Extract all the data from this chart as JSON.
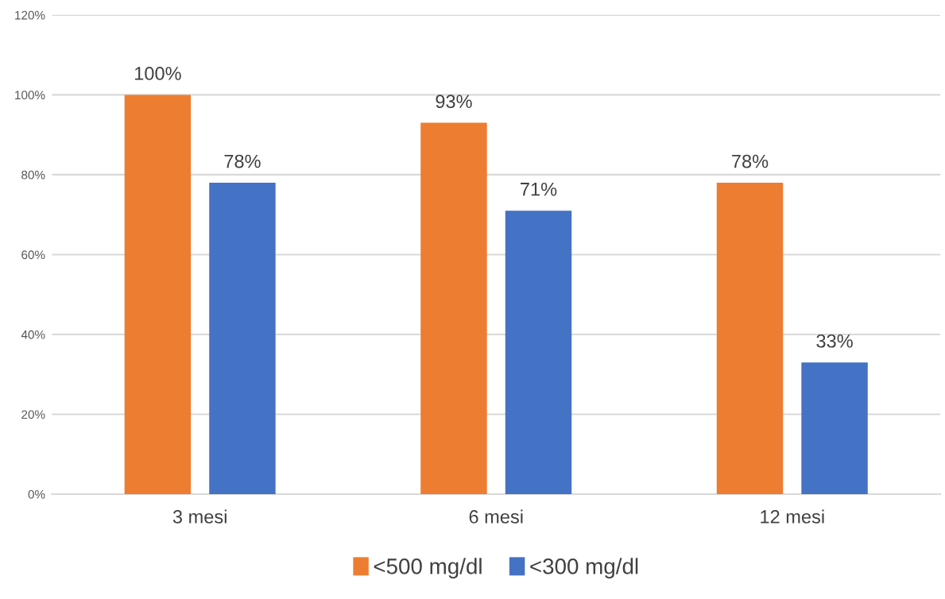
{
  "chart_data": {
    "type": "bar",
    "categories": [
      "3 mesi",
      "6 mesi",
      "12 mesi"
    ],
    "series": [
      {
        "name": "<500 mg/dl",
        "color": "#ed7d31",
        "values": [
          100,
          93,
          78
        ],
        "value_labels": [
          "100%",
          "93%",
          "78%"
        ]
      },
      {
        "name": "<300 mg/dl",
        "color": "#4472c4",
        "values": [
          78,
          71,
          33
        ],
        "value_labels": [
          "78%",
          "71%",
          "33%"
        ]
      }
    ],
    "ylim": [
      0,
      120
    ],
    "yticks": [
      {
        "value": 0,
        "label": "0%"
      },
      {
        "value": 20,
        "label": "20%"
      },
      {
        "value": 40,
        "label": "40%"
      },
      {
        "value": 60,
        "label": "60%"
      },
      {
        "value": 80,
        "label": "80%"
      },
      {
        "value": 100,
        "label": "100%"
      },
      {
        "value": 120,
        "label": "120%"
      }
    ],
    "grid": "y",
    "legend": "bottom"
  }
}
